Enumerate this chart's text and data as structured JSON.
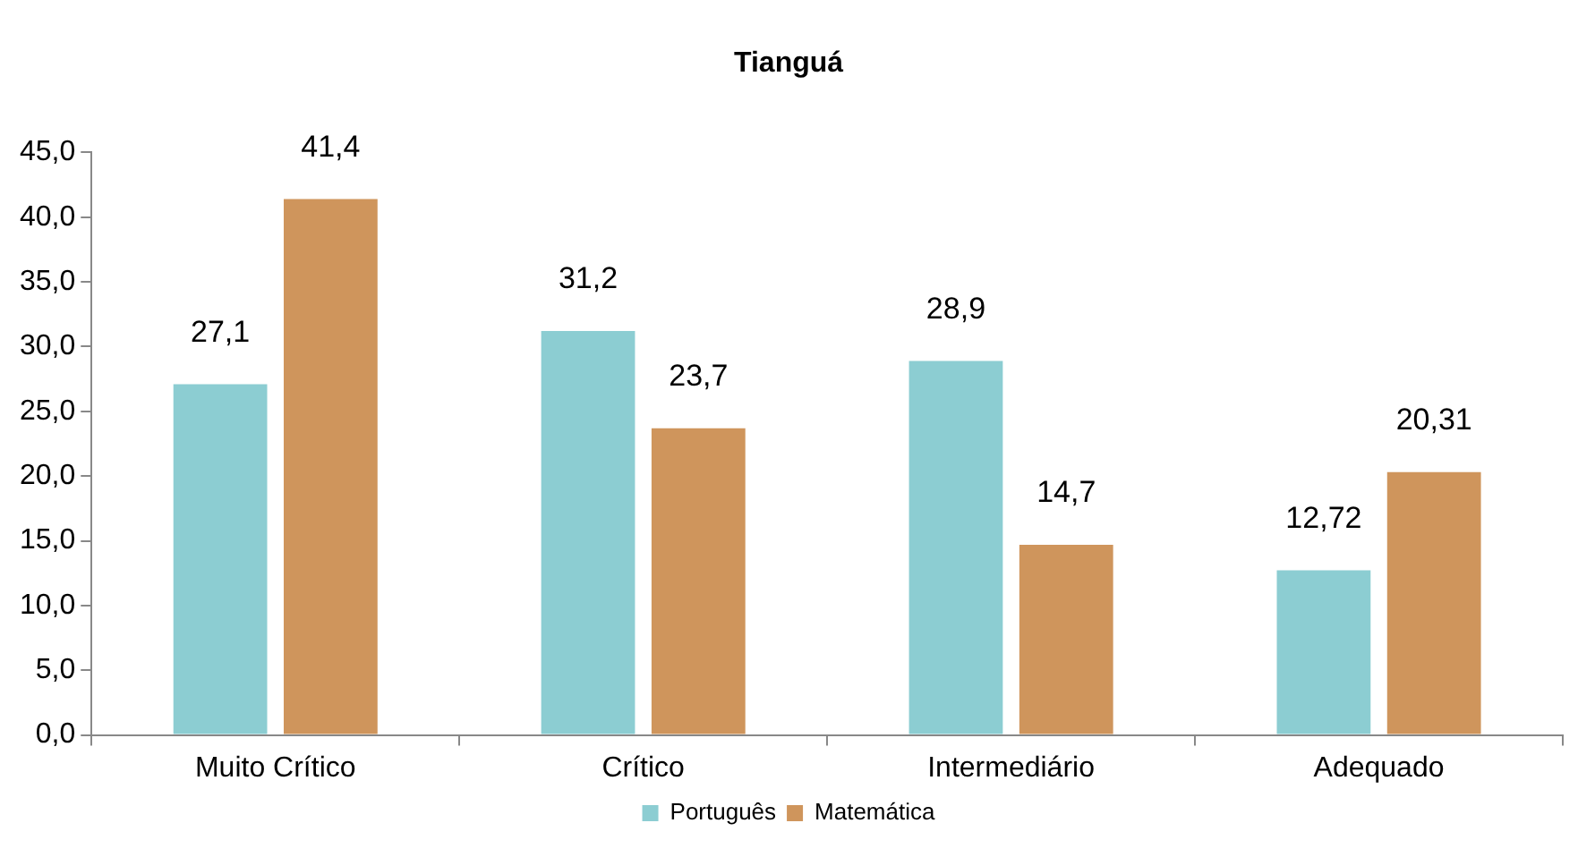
{
  "chart_data": {
    "type": "bar",
    "title": "Tianguá",
    "categories": [
      "Muito Crítico",
      "Crítico",
      "Intermediário",
      "Adequado"
    ],
    "series": [
      {
        "name": "Português",
        "color": "#8ccdd2",
        "values": [
          27.1,
          31.2,
          28.9,
          12.72
        ],
        "value_labels": [
          "27,1",
          "31,2",
          "28,9",
          "12,72"
        ]
      },
      {
        "name": "Matemática",
        "color": "#cf955c",
        "values": [
          41.4,
          23.7,
          14.7,
          20.31
        ],
        "value_labels": [
          "41,4",
          "23,7",
          "14,7",
          "20,31"
        ]
      }
    ],
    "ylim": [
      0,
      45
    ],
    "yticks": [
      {
        "value": 0,
        "label": "0,0"
      },
      {
        "value": 5,
        "label": "5,0"
      },
      {
        "value": 10,
        "label": "10,0"
      },
      {
        "value": 15,
        "label": "15,0"
      },
      {
        "value": 20,
        "label": "20,0"
      },
      {
        "value": 25,
        "label": "25,0"
      },
      {
        "value": 30,
        "label": "30,0"
      },
      {
        "value": 35,
        "label": "35,0"
      },
      {
        "value": 40,
        "label": "40,0"
      },
      {
        "value": 45,
        "label": "45,0"
      }
    ],
    "grid": false,
    "legend": "bottom"
  }
}
